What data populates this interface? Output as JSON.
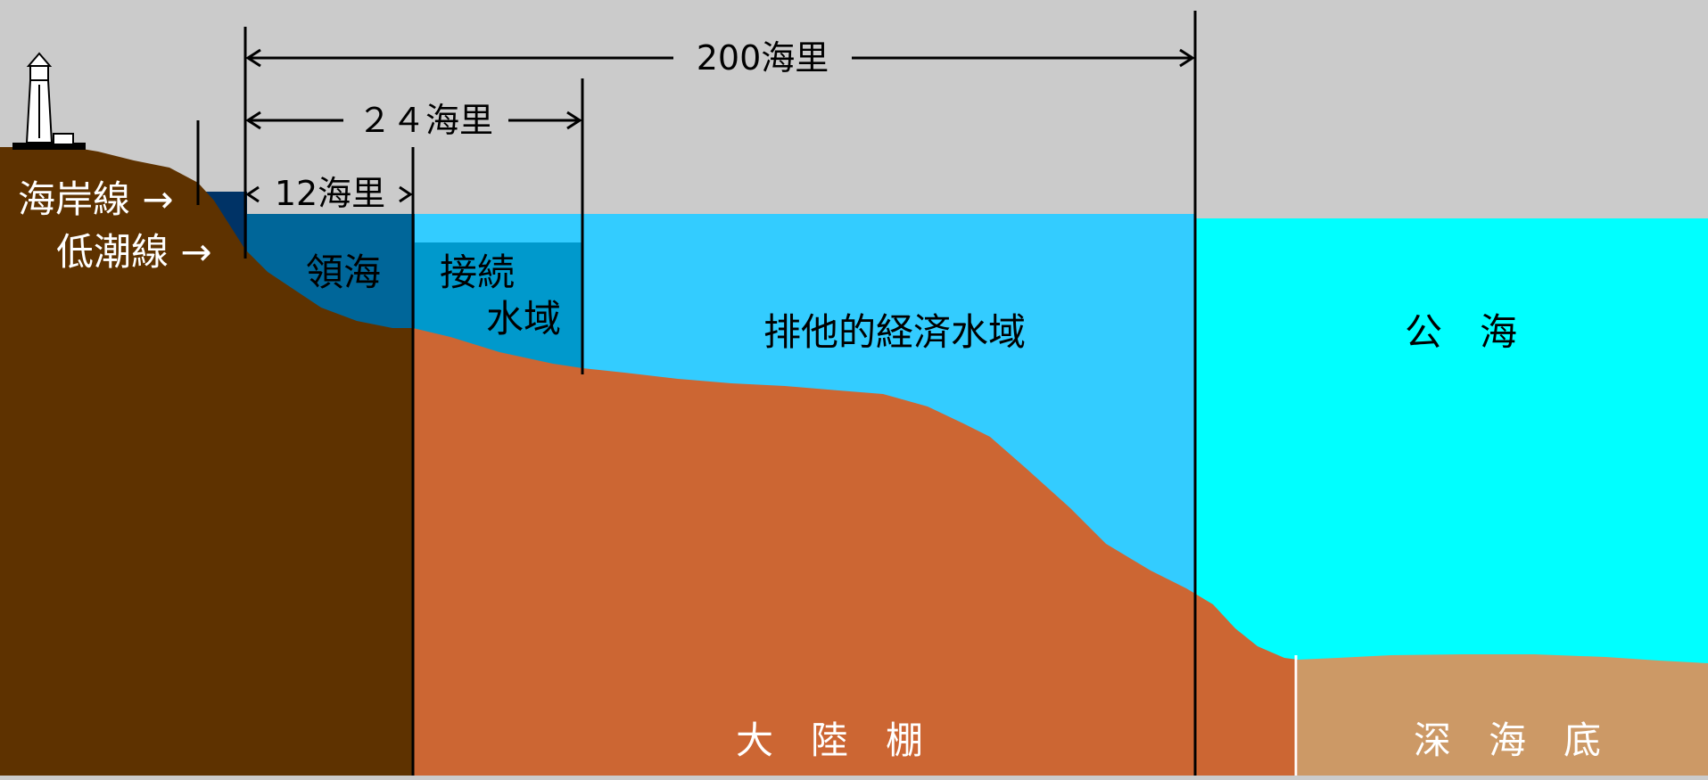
{
  "colors": {
    "sky": "#cbcbcb",
    "land_coast": "#5e3200",
    "continental_shelf": "#cc6633",
    "deep_seabed": "#cc9966",
    "territorial_sea": "#006699",
    "contiguous_zone": "#0099cc",
    "eez": "#33ccff",
    "high_seas": "#00ffff",
    "inner_water": "#003366"
  },
  "dimensions": {
    "nm200": "200海里",
    "nm24": "２４海里",
    "nm12": "12海里"
  },
  "shore_labels": {
    "coastline": "海岸線 →",
    "low_water_line": "低潮線 →"
  },
  "zones": {
    "territorial_sea": "領海",
    "contiguous_line1": "接続",
    "contiguous_line2": "水域",
    "eez": "排他的経済水域",
    "high_seas": "公　海"
  },
  "seabed": {
    "continental_shelf": "大　陸　棚",
    "deep_seabed": "深　海　底"
  },
  "icons": {
    "lighthouse": "lighthouse-icon"
  }
}
